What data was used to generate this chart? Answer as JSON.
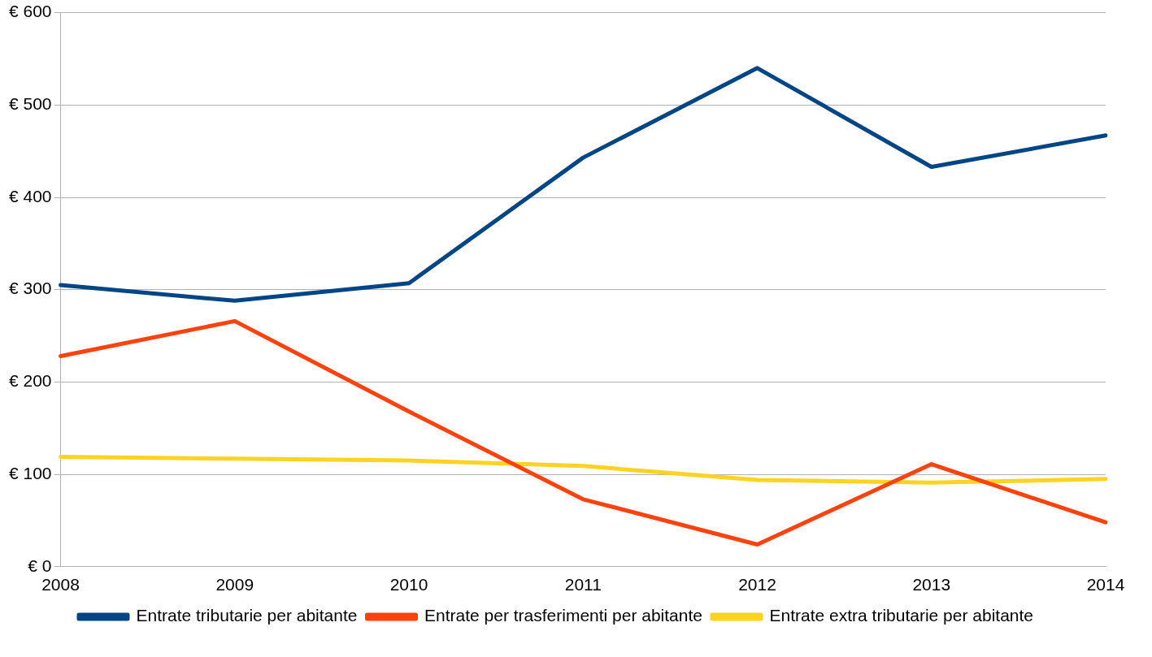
{
  "chart_data": {
    "type": "line",
    "categories": [
      "2008",
      "2009",
      "2010",
      "2011",
      "2012",
      "2013",
      "2014"
    ],
    "series": [
      {
        "name": "Entrate tributarie per abitante",
        "color": "#004586",
        "values": [
          305,
          288,
          307,
          443,
          540,
          433,
          467
        ]
      },
      {
        "name": "Entrate per trasferimenti per abitante",
        "color": "#ff420e",
        "values": [
          228,
          266,
          168,
          73,
          24,
          111,
          48
        ]
      },
      {
        "name": "Entrate extra tributarie per abitante",
        "color": "#ffd320",
        "values": [
          119,
          117,
          115,
          109,
          94,
          91,
          95
        ]
      }
    ],
    "ylim": [
      0,
      600
    ],
    "yticks": [
      {
        "value": 0,
        "label": "€ 0"
      },
      {
        "value": 100,
        "label": "€ 100"
      },
      {
        "value": 200,
        "label": "€ 200"
      },
      {
        "value": 300,
        "label": "€ 300"
      },
      {
        "value": 400,
        "label": "€ 400"
      },
      {
        "value": 500,
        "label": "€ 500"
      },
      {
        "value": 600,
        "label": "€ 600"
      }
    ],
    "grid": "y",
    "legend": "bottom",
    "marker": "none",
    "line_style": "solid"
  }
}
